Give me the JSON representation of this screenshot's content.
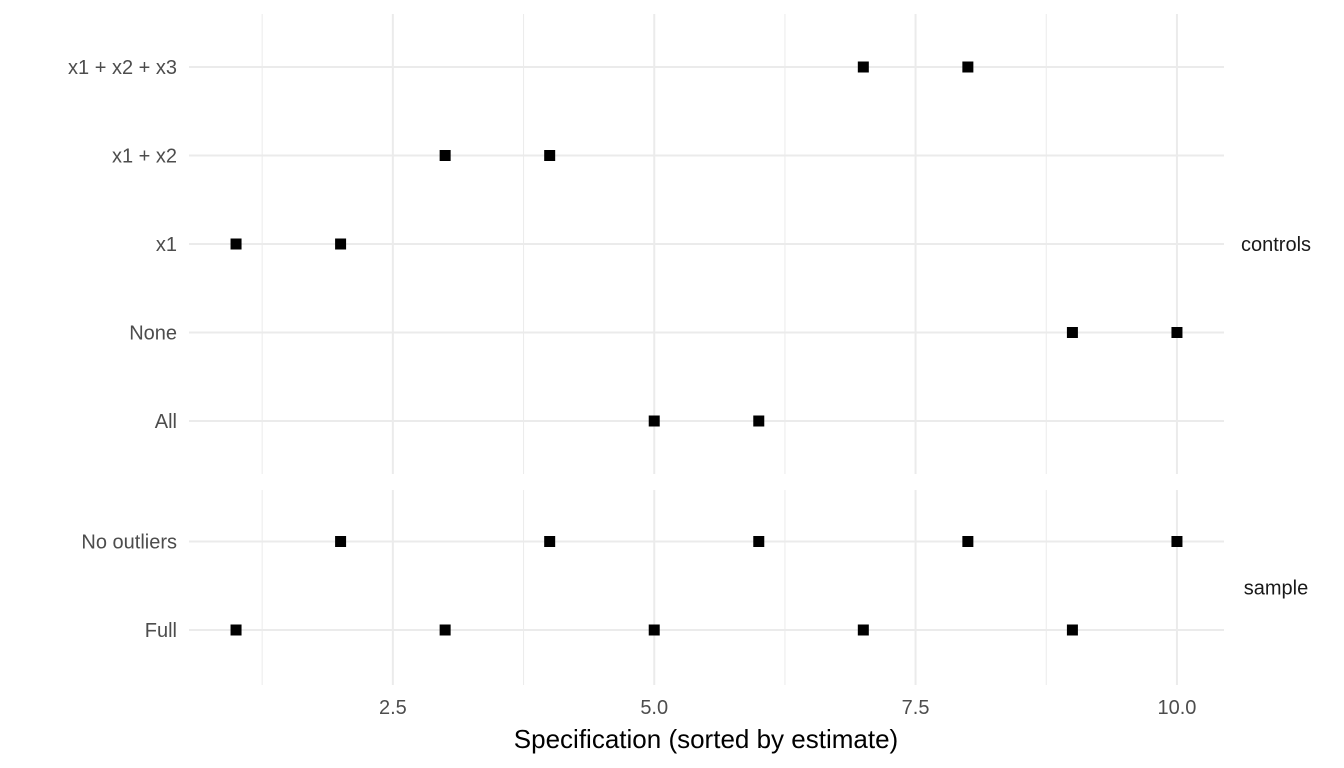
{
  "chart_data": {
    "type": "scatter",
    "xlabel": "Specification (sorted by estimate)",
    "xlim": [
      0.55,
      10.45
    ],
    "x_ticks": [
      2.5,
      5.0,
      7.5,
      10.0
    ],
    "x_tick_labels": [
      "2.5",
      "5.0",
      "7.5",
      "10.0"
    ],
    "x_minor_ticks": [
      1.25,
      3.75,
      6.25,
      8.75
    ],
    "grid": true,
    "marker": "square",
    "marker_color": "#000000",
    "facets": [
      {
        "label": "controls",
        "categories": [
          "All",
          "None",
          "x1",
          "x1 + x2",
          "x1 + x2 + x3"
        ],
        "points": [
          {
            "x": 1,
            "y": "x1"
          },
          {
            "x": 2,
            "y": "x1"
          },
          {
            "x": 3,
            "y": "x1 + x2"
          },
          {
            "x": 4,
            "y": "x1 + x2"
          },
          {
            "x": 5,
            "y": "All"
          },
          {
            "x": 6,
            "y": "All"
          },
          {
            "x": 7,
            "y": "x1 + x2 + x3"
          },
          {
            "x": 8,
            "y": "x1 + x2 + x3"
          },
          {
            "x": 9,
            "y": "None"
          },
          {
            "x": 10,
            "y": "None"
          }
        ]
      },
      {
        "label": "sample",
        "categories": [
          "Full",
          "No outliers"
        ],
        "points": [
          {
            "x": 1,
            "y": "Full"
          },
          {
            "x": 2,
            "y": "No outliers"
          },
          {
            "x": 3,
            "y": "Full"
          },
          {
            "x": 4,
            "y": "No outliers"
          },
          {
            "x": 5,
            "y": "Full"
          },
          {
            "x": 6,
            "y": "No outliers"
          },
          {
            "x": 7,
            "y": "Full"
          },
          {
            "x": 8,
            "y": "No outliers"
          },
          {
            "x": 9,
            "y": "Full"
          },
          {
            "x": 10,
            "y": "No outliers"
          }
        ]
      }
    ]
  }
}
